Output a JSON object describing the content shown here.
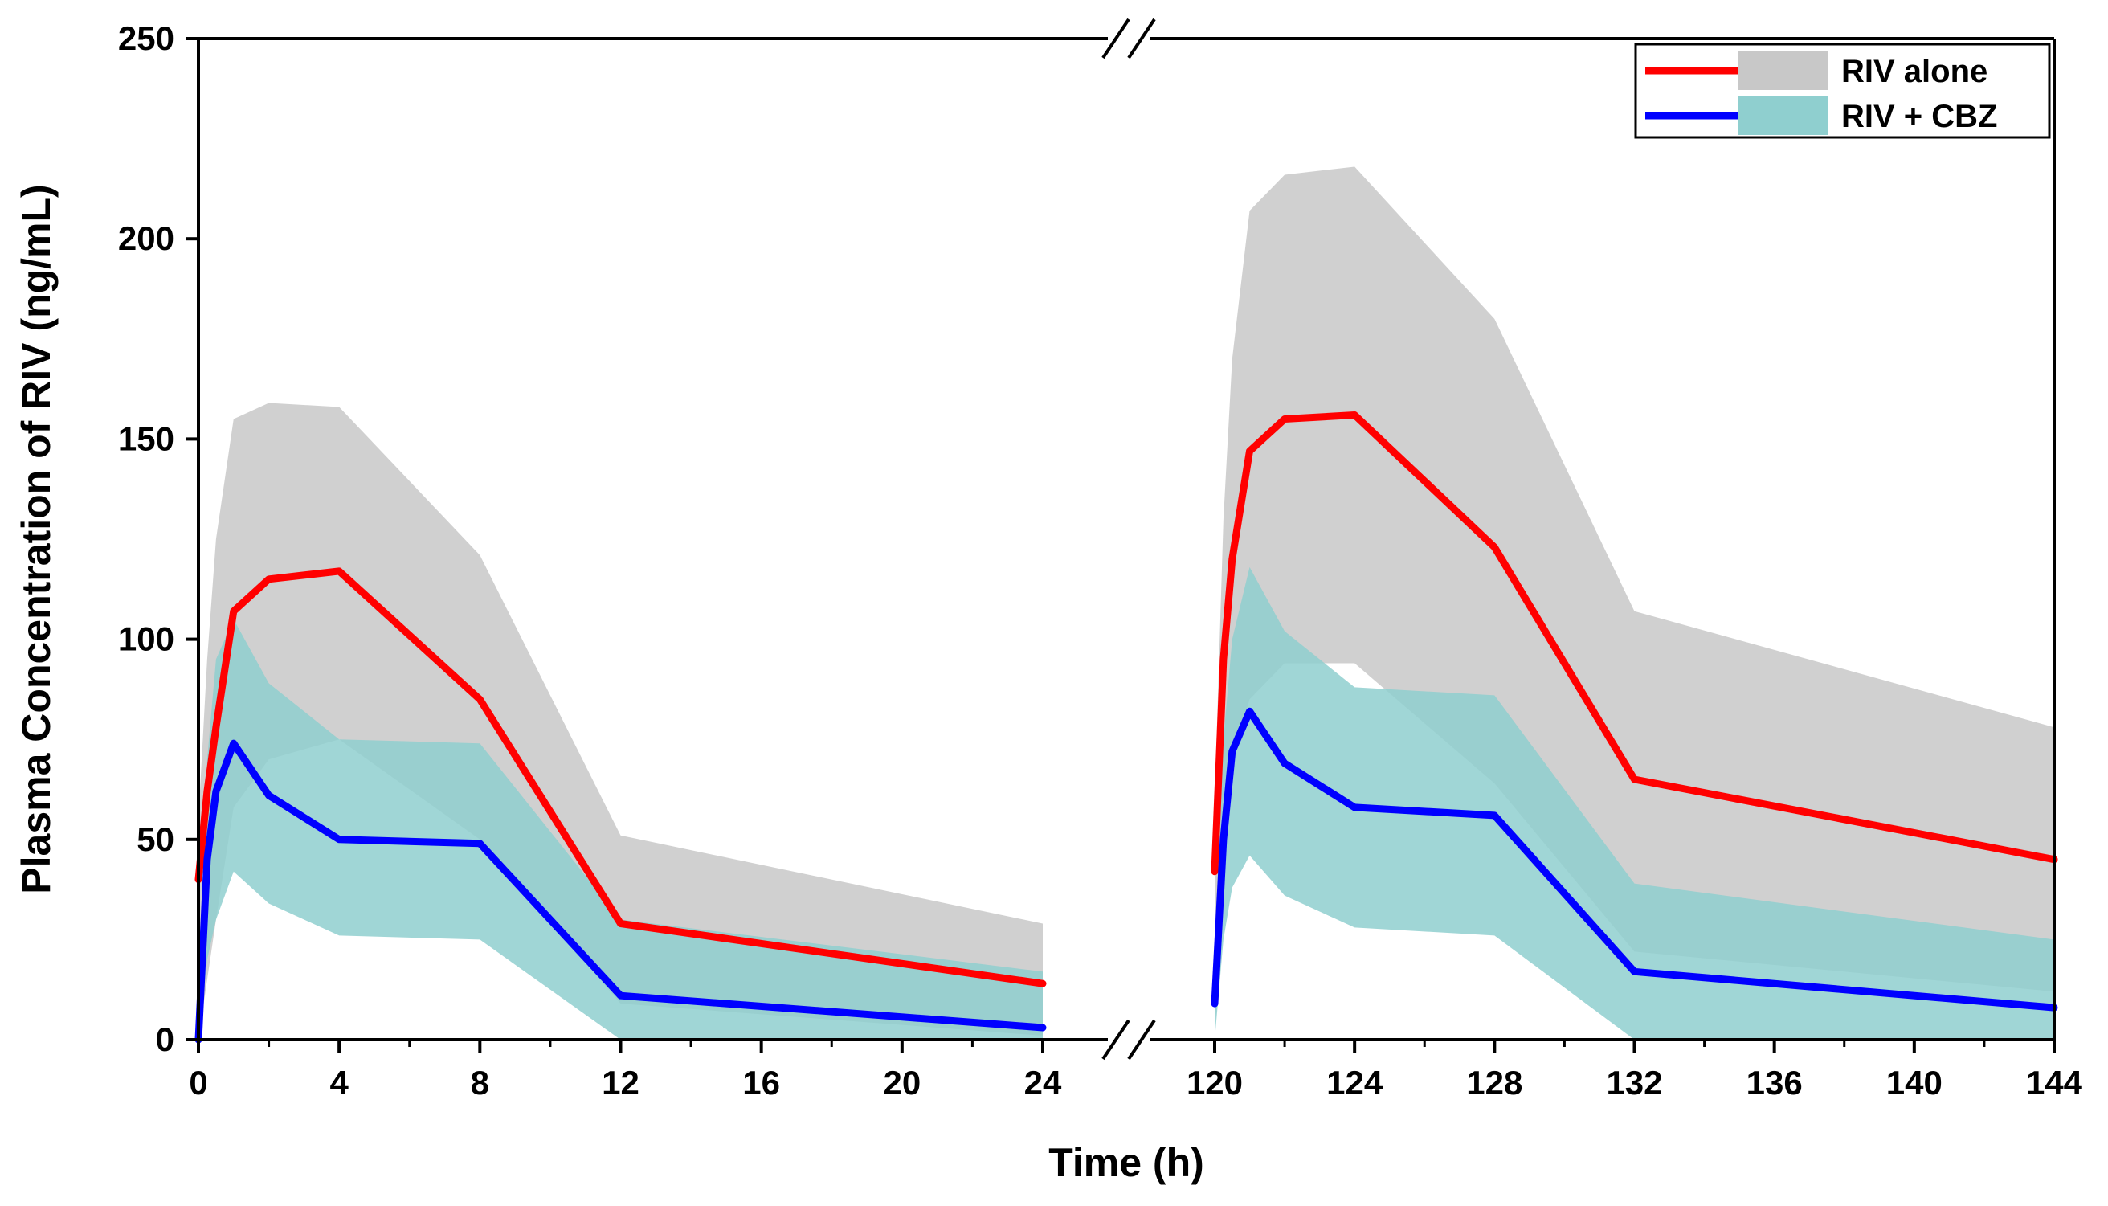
{
  "chart_data": {
    "type": "area",
    "title": "",
    "xlabel": "Time (h)",
    "ylabel": "Plasma Concentration of RIV (ng/mL)",
    "ylim": [
      0,
      250
    ],
    "yticks": [
      0,
      50,
      100,
      150,
      200,
      250
    ],
    "x_segments": [
      {
        "range": [
          0,
          24
        ],
        "ticks": [
          0,
          4,
          8,
          12,
          16,
          20,
          24
        ]
      },
      {
        "range": [
          120,
          144
        ],
        "ticks": [
          120,
          124,
          128,
          132,
          136,
          140,
          144
        ]
      }
    ],
    "axis_break": true,
    "legend_position": "top-right",
    "series": [
      {
        "name": "RIV alone",
        "line_color": "#ff0000",
        "band_color": "#c8c8c8",
        "segments": [
          {
            "x": [
              0,
              0.25,
              0.5,
              1,
              2,
              4,
              8,
              12,
              24
            ],
            "y": [
              40,
              62,
              78,
              107,
              115,
              117,
              85,
              29,
              14
            ],
            "upper": [
              55,
              95,
              125,
              155,
              159,
              158,
              121,
              51,
              29
            ],
            "lower": [
              0,
              15,
              30,
              58,
              70,
              75,
              50,
              9,
              1
            ]
          },
          {
            "x": [
              120,
              120.25,
              120.5,
              121,
              122,
              124,
              128,
              132,
              144
            ],
            "y": [
              42,
              95,
              120,
              147,
              155,
              156,
              123,
              65,
              45
            ],
            "upper": [
              60,
              130,
              170,
              207,
              216,
              218,
              180,
              107,
              78
            ],
            "lower": [
              0,
              50,
              70,
              85,
              94,
              94,
              64,
              22,
              12
            ]
          }
        ]
      },
      {
        "name": "RIV + CBZ",
        "line_color": "#0000ff",
        "band_color": "#8fcfcf",
        "segments": [
          {
            "x": [
              0,
              0.25,
              0.5,
              1,
              2,
              4,
              8,
              12,
              24
            ],
            "y": [
              0,
              45,
              62,
              74,
              61,
              50,
              49,
              11,
              3
            ],
            "upper": [
              8,
              70,
              95,
              105,
              89,
              75,
              74,
              30,
              17
            ],
            "lower": [
              0,
              20,
              30,
              42,
              34,
              26,
              25,
              -8,
              -10
            ]
          },
          {
            "x": [
              120,
              120.25,
              120.5,
              121,
              122,
              124,
              128,
              132,
              144
            ],
            "y": [
              9,
              50,
              72,
              82,
              69,
              58,
              56,
              17,
              8
            ],
            "upper": [
              12,
              75,
              100,
              118,
              102,
              88,
              86,
              39,
              25
            ],
            "lower": [
              0,
              25,
              38,
              46,
              36,
              28,
              26,
              -5,
              -10
            ]
          }
        ]
      }
    ]
  }
}
